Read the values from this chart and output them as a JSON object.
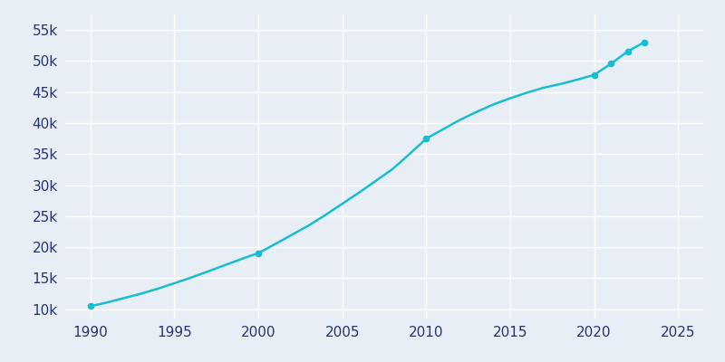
{
  "years": [
    1990,
    1991,
    1992,
    1993,
    1994,
    1995,
    1996,
    1997,
    1998,
    1999,
    2000,
    2001,
    2002,
    2003,
    2004,
    2005,
    2006,
    2007,
    2008,
    2009,
    2010,
    2011,
    2012,
    2013,
    2014,
    2015,
    2016,
    2017,
    2018,
    2019,
    2020,
    2021,
    2022,
    2023
  ],
  "populations": [
    10486,
    11100,
    11800,
    12500,
    13300,
    14200,
    15100,
    16100,
    17100,
    18100,
    19046,
    20500,
    22000,
    23500,
    25200,
    27000,
    28800,
    30700,
    32600,
    35000,
    37490,
    39000,
    40500,
    41800,
    43000,
    44000,
    44900,
    45700,
    46300,
    47000,
    47762,
    49553,
    51554,
    53049
  ],
  "line_color": "#17BECF",
  "marker_color": "#17BECF",
  "bg_color": "#E8EEF5",
  "plot_bg_color": "#E8EEF5",
  "grid_color": "#FFFFFF",
  "text_color": "#253471",
  "xlim": [
    1988.5,
    2026.5
  ],
  "ylim": [
    8500,
    57500
  ],
  "xticks": [
    1990,
    1995,
    2000,
    2005,
    2010,
    2015,
    2020,
    2025
  ],
  "yticks": [
    10000,
    15000,
    20000,
    25000,
    30000,
    35000,
    40000,
    45000,
    50000,
    55000
  ],
  "ytick_labels": [
    "10k",
    "15k",
    "20k",
    "25k",
    "30k",
    "35k",
    "40k",
    "45k",
    "50k",
    "55k"
  ],
  "marker_years": [
    1990,
    2000,
    2010,
    2020,
    2021,
    2022,
    2023
  ],
  "marker_pops": [
    10486,
    19046,
    37490,
    47762,
    49553,
    51554,
    53049
  ],
  "figsize": [
    8.0,
    4.0
  ],
  "dpi": 100,
  "linewidth": 1.8,
  "markersize": 4.5
}
